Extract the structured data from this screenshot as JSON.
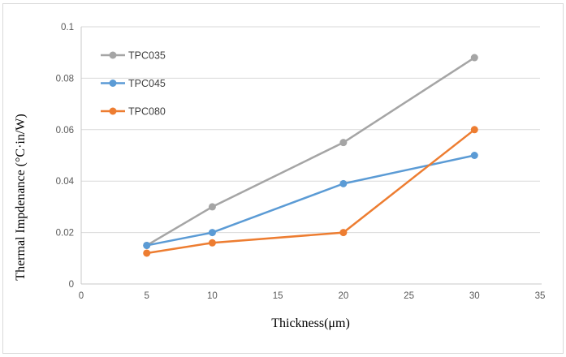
{
  "chart_data": {
    "type": "line",
    "x": [
      5,
      10,
      20,
      30
    ],
    "series": [
      {
        "name": "TPC035",
        "color": "#a5a5a5",
        "values": [
          0.015,
          0.03,
          0.055,
          0.088
        ]
      },
      {
        "name": "TPC045",
        "color": "#5b9bd5",
        "values": [
          0.015,
          0.02,
          0.039,
          0.05
        ]
      },
      {
        "name": "TPC080",
        "color": "#ed7d31",
        "values": [
          0.012,
          0.016,
          0.02,
          0.06
        ]
      }
    ],
    "title": "",
    "xlabel": "Thickness(μm)",
    "ylabel": "Thermal Impdenance (°C·in/W)",
    "xlim": [
      0,
      35
    ],
    "ylim": [
      0,
      0.1
    ],
    "xtick_labels": [
      "0",
      "5",
      "10",
      "15",
      "20",
      "25",
      "30",
      "35"
    ],
    "ytick_labels": [
      "0",
      "0.02",
      "0.04",
      "0.06",
      "0.08",
      "0.1"
    ],
    "grid": "horizontal-only",
    "legend_position": "inside-top-left",
    "legend_entries": [
      "TPC035",
      "TPC045",
      "TPC080"
    ]
  },
  "style": {
    "background": "#ffffff",
    "border_color": "#d9d9d9",
    "gridline_color": "#d9d9d9",
    "axis_line_color": "#c9c9c9",
    "tick_text_color": "#595959",
    "legend_text_color": "#404040",
    "axis_title_color": "#000000"
  }
}
